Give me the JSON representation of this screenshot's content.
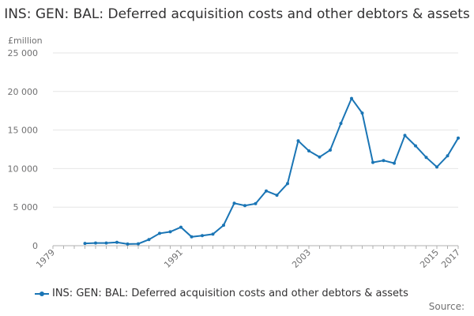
{
  "title": "INS: GEN: BAL: Deferred acquisition costs and other debtors & assets",
  "source_label": "Source:",
  "colors": {
    "series": "#1a75b5",
    "grid": "#e6e6e6",
    "axis": "#b0b0b0",
    "text": "#323132",
    "tick": "#707071"
  },
  "chart_data": {
    "type": "line",
    "title": "INS: GEN: BAL: Deferred acquisition costs and other debtors & assets",
    "ylabel": "£million",
    "xlabel": "",
    "ylim": [
      0,
      25000
    ],
    "xlim": [
      1979,
      2017
    ],
    "y_ticks": [
      0,
      5000,
      10000,
      15000,
      20000,
      25000
    ],
    "y_tick_labels": [
      "0",
      "5 000",
      "10 000",
      "15 000",
      "20 000",
      "25 000"
    ],
    "x_ticks": [
      1979,
      1991,
      2003,
      2015,
      2017
    ],
    "x_tick_labels": [
      "1979",
      "1991",
      "2003",
      "2015",
      "2017"
    ],
    "grid": true,
    "legend_position": "bottom",
    "series": [
      {
        "name": "INS: GEN: BAL: Deferred acquisition costs and other debtors & assets",
        "x": [
          1982,
          1983,
          1984,
          1985,
          1986,
          1987,
          1988,
          1989,
          1990,
          1991,
          1992,
          1993,
          1994,
          1995,
          1996,
          1997,
          1998,
          1999,
          2000,
          2001,
          2002,
          2003,
          2004,
          2005,
          2006,
          2007,
          2008,
          2009,
          2010,
          2011,
          2012,
          2013,
          2014,
          2015,
          2016,
          2017
        ],
        "values": [
          300,
          350,
          350,
          430,
          220,
          250,
          800,
          1600,
          1800,
          2400,
          1150,
          1300,
          1500,
          2650,
          5500,
          5200,
          5450,
          7100,
          6550,
          8050,
          13600,
          12300,
          11500,
          12400,
          15850,
          19100,
          17200,
          10800,
          11050,
          10700,
          14300,
          12950,
          11450,
          10200,
          11650,
          13950
        ]
      }
    ]
  }
}
